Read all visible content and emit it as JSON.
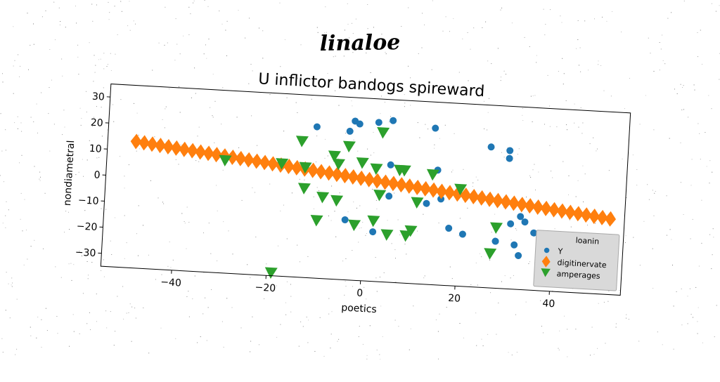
{
  "figure": {
    "suptitle": "linaloe"
  },
  "chart_data": {
    "type": "scatter",
    "title": "U inflictor bandogs spireward",
    "xlabel": "poetics",
    "ylabel": "nondiametral",
    "xlim": [
      -55,
      55
    ],
    "ylim": [
      -35,
      35
    ],
    "xticks": [
      -40,
      -20,
      0,
      20,
      40
    ],
    "yticks": [
      -30,
      -20,
      -10,
      0,
      10,
      20,
      30
    ],
    "grid": false,
    "legend": {
      "title": "loanin",
      "position": "lower right"
    },
    "series": [
      {
        "name": "Y",
        "marker": "circle",
        "color": "#1f77b4",
        "points": [
          [
            -11,
            23
          ],
          [
            -4,
            22
          ],
          [
            -3,
            26
          ],
          [
            -2,
            25
          ],
          [
            2,
            26
          ],
          [
            5,
            27
          ],
          [
            14,
            25
          ],
          [
            26,
            19
          ],
          [
            30,
            18
          ],
          [
            30,
            15
          ],
          [
            -4,
            -12
          ],
          [
            2,
            -16
          ],
          [
            5,
            -2
          ],
          [
            13,
            -4
          ],
          [
            16,
            -2
          ],
          [
            15,
            9
          ],
          [
            5,
            10
          ],
          [
            18,
            -13
          ],
          [
            21,
            -15
          ],
          [
            28,
            -17
          ],
          [
            28,
            -17
          ],
          [
            31,
            -10
          ],
          [
            33,
            -7
          ],
          [
            34,
            -9
          ],
          [
            36,
            -13
          ],
          [
            32,
            -18
          ],
          [
            33,
            -22
          ]
        ]
      },
      {
        "name": "digitinervate",
        "marker": "diamond",
        "color": "#ff7f0e",
        "x_start": -49,
        "y_start": 13.5,
        "x_end": 52,
        "y_end": -6,
        "count": 60
      },
      {
        "name": "amperages",
        "marker": "triangle_down",
        "color": "#2ca02c",
        "points": [
          [
            -30,
            8
          ],
          [
            -18,
            8
          ],
          [
            -14,
            17
          ],
          [
            -13,
            7
          ],
          [
            -13,
            -1
          ],
          [
            -10,
            -13
          ],
          [
            -9,
            -4
          ],
          [
            -7,
            12
          ],
          [
            -6,
            9
          ],
          [
            -6,
            -5
          ],
          [
            -2,
            -14
          ],
          [
            -4,
            16
          ],
          [
            -19,
            -34
          ],
          [
            -1,
            10
          ],
          [
            2,
            -12
          ],
          [
            2,
            8
          ],
          [
            3,
            22
          ],
          [
            3,
            -2
          ],
          [
            5,
            -17
          ],
          [
            7,
            8
          ],
          [
            8,
            8
          ],
          [
            9,
            -17
          ],
          [
            10,
            -15
          ],
          [
            11,
            -4
          ],
          [
            14,
            7
          ],
          [
            20,
            2
          ],
          [
            27,
            -22
          ],
          [
            28,
            -12
          ]
        ]
      }
    ]
  }
}
